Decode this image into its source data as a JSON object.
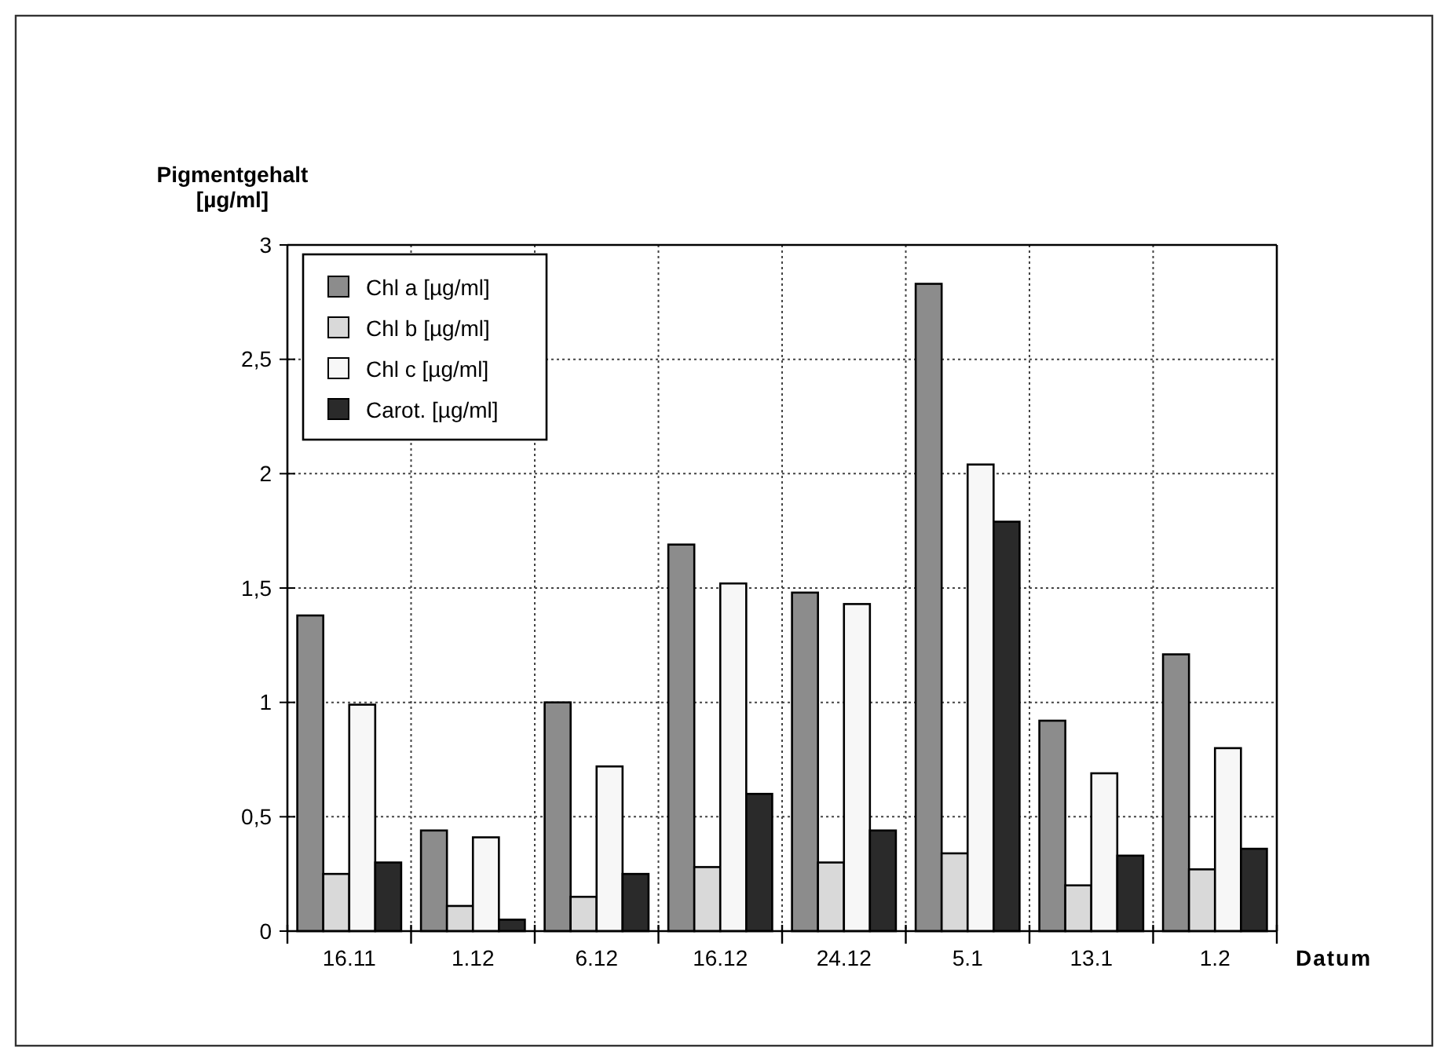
{
  "chart_data": {
    "type": "bar",
    "ylabel": "Pigmentgehalt\n[µg/ml]",
    "xlabel": "Datum",
    "categories": [
      "16.11",
      "1.12",
      "6.12",
      "16.12",
      "24.12",
      "5.1",
      "13.1",
      "1.2"
    ],
    "series": [
      {
        "name": "Chl a [µg/ml]",
        "color": "#8c8c8c",
        "values": [
          1.38,
          0.44,
          1.0,
          1.69,
          1.48,
          2.83,
          0.92,
          1.21
        ]
      },
      {
        "name": "Chl b [µg/ml]",
        "color": "#d9d9d9",
        "values": [
          0.25,
          0.11,
          0.15,
          0.28,
          0.3,
          0.34,
          0.2,
          0.27
        ]
      },
      {
        "name": "Chl c [µg/ml]",
        "color": "#f7f7f7",
        "values": [
          0.99,
          0.41,
          0.72,
          1.52,
          1.43,
          2.04,
          0.69,
          0.8
        ]
      },
      {
        "name": "Carot. [µg/ml]",
        "color": "#2a2a2a",
        "values": [
          0.3,
          0.05,
          0.25,
          0.6,
          0.44,
          1.79,
          0.33,
          0.36
        ]
      }
    ],
    "ylim": [
      0,
      3
    ],
    "yticks": [
      0,
      {
        "value": 0.5,
        "label": "0,5"
      },
      1,
      {
        "value": 1.5,
        "label": "1,5"
      },
      2,
      {
        "value": 2.5,
        "label": "2,5"
      },
      3
    ],
    "grid": true,
    "legend": "top left"
  }
}
